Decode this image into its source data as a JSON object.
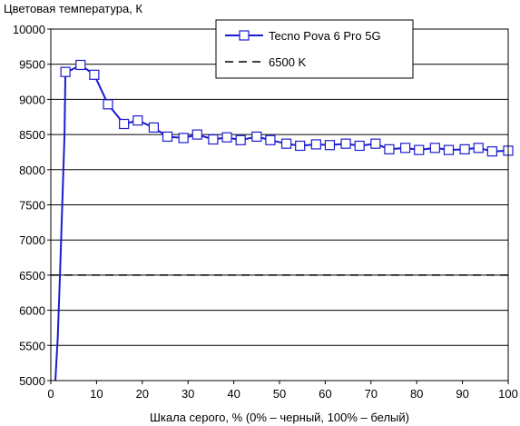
{
  "chart_data": {
    "type": "line",
    "ylabel": "Цветовая температура, К",
    "xlabel": "Шкала серого, % (0% – черный, 100% – белый)",
    "xlim": [
      0,
      100
    ],
    "ylim": [
      5000,
      10000
    ],
    "x_ticks": [
      "0",
      "10",
      "20",
      "30",
      "40",
      "50",
      "60",
      "70",
      "80",
      "90",
      "100"
    ],
    "y_ticks": [
      "5000",
      "5500",
      "6000",
      "6500",
      "7000",
      "7500",
      "8000",
      "8500",
      "9000",
      "9500",
      "10000"
    ],
    "grid": "horizontal",
    "legend_position": "top-right",
    "series": [
      {
        "name": "Tecno Pova 6 Pro 5G",
        "color": "#1c1ccf",
        "marker": "square",
        "points": [
          [
            1.0,
            5000
          ],
          [
            1.5,
            5600
          ],
          [
            2.0,
            6500
          ],
          [
            2.5,
            7500
          ],
          [
            3.0,
            8500
          ],
          [
            3.2,
            9390
          ],
          [
            4.5,
            9420
          ],
          [
            6.5,
            9490
          ],
          [
            9.5,
            9350
          ],
          [
            12.5,
            8930
          ],
          [
            16.0,
            8650
          ],
          [
            19.0,
            8700
          ],
          [
            22.5,
            8600
          ],
          [
            25.5,
            8470
          ],
          [
            29.0,
            8450
          ],
          [
            32.0,
            8500
          ],
          [
            35.5,
            8430
          ],
          [
            38.5,
            8460
          ],
          [
            41.5,
            8420
          ],
          [
            45.0,
            8470
          ],
          [
            48.0,
            8420
          ],
          [
            51.5,
            8370
          ],
          [
            54.5,
            8340
          ],
          [
            58.0,
            8360
          ],
          [
            61.0,
            8350
          ],
          [
            64.5,
            8370
          ],
          [
            67.5,
            8340
          ],
          [
            71.0,
            8370
          ],
          [
            74.0,
            8290
          ],
          [
            77.5,
            8310
          ],
          [
            80.5,
            8280
          ],
          [
            84.0,
            8310
          ],
          [
            87.0,
            8280
          ],
          [
            90.5,
            8290
          ],
          [
            93.5,
            8310
          ],
          [
            96.5,
            8260
          ],
          [
            100.0,
            8270
          ]
        ],
        "marker_points": [
          [
            3.2,
            9390
          ],
          [
            6.5,
            9490
          ],
          [
            9.5,
            9350
          ],
          [
            12.5,
            8930
          ],
          [
            16.0,
            8650
          ],
          [
            19.0,
            8700
          ],
          [
            22.5,
            8600
          ],
          [
            25.5,
            8470
          ],
          [
            29.0,
            8450
          ],
          [
            32.0,
            8500
          ],
          [
            35.5,
            8430
          ],
          [
            38.5,
            8460
          ],
          [
            41.5,
            8420
          ],
          [
            45.0,
            8470
          ],
          [
            48.0,
            8420
          ],
          [
            51.5,
            8370
          ],
          [
            54.5,
            8340
          ],
          [
            58.0,
            8360
          ],
          [
            61.0,
            8350
          ],
          [
            64.5,
            8370
          ],
          [
            67.5,
            8340
          ],
          [
            71.0,
            8370
          ],
          [
            74.0,
            8290
          ],
          [
            77.5,
            8310
          ],
          [
            80.5,
            8280
          ],
          [
            84.0,
            8310
          ],
          [
            87.0,
            8280
          ],
          [
            90.5,
            8290
          ],
          [
            93.5,
            8310
          ],
          [
            96.5,
            8260
          ],
          [
            100.0,
            8270
          ]
        ]
      },
      {
        "name": "6500 K",
        "color": "#000000",
        "style": "dashed",
        "points": [
          [
            0,
            6500
          ],
          [
            100,
            6500
          ]
        ]
      }
    ]
  }
}
